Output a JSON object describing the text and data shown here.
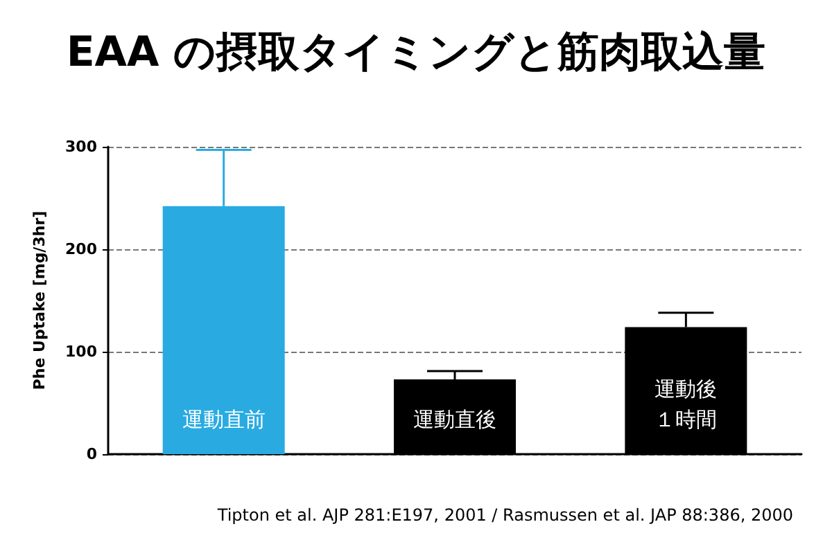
{
  "chart_data": {
    "type": "bar",
    "title": "EAA の摂取タイミングと筋肉取込量",
    "ylabel": "Phe Uptake [mg/3hr]",
    "categories": [
      "運動直前",
      "運動直後",
      "運動後１時間"
    ],
    "values": [
      242,
      73,
      124
    ],
    "colors": [
      "#29abe2",
      "#000000",
      "#000000"
    ],
    "errors": [
      [
        242,
        297
      ],
      [
        73,
        81
      ],
      [
        124,
        138
      ]
    ],
    "ylim": [
      0,
      300
    ],
    "yticks": [
      0,
      100,
      200,
      300
    ],
    "grid": "y",
    "annotations": [
      "Tipton et al. AJP 281:E197, 2001 / Rasmussen et al. JAP 88:386, 2000"
    ]
  }
}
